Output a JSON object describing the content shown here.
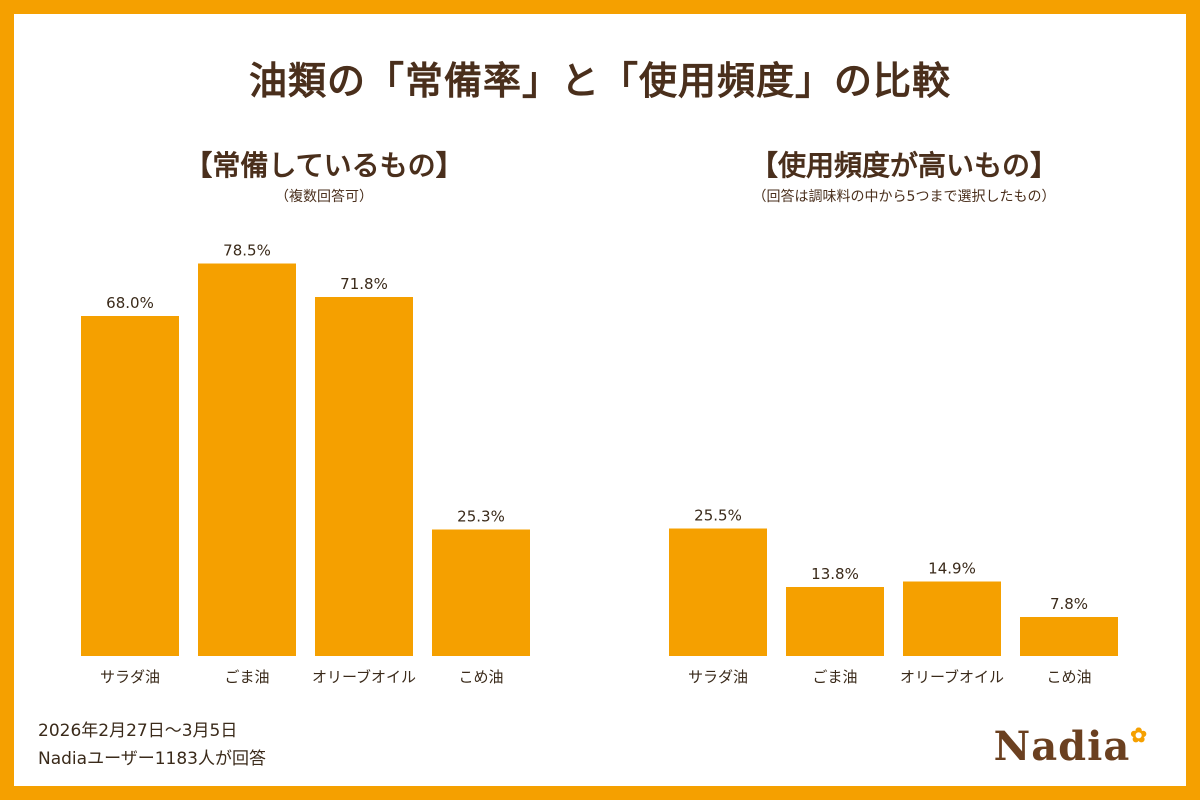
{
  "title": "油類の「常備率」と「使用頻度」の比較",
  "footer": {
    "date": "2026年2月27日〜3月5日",
    "respondents": "Nadiaユーザー1183人が回答"
  },
  "logo": {
    "text": "Nadia",
    "icon": "fork-knife-icon"
  },
  "colors": {
    "bar": "#f5a000",
    "frame": "#f5a000",
    "text": "#4a2f1c"
  },
  "chart_data": [
    {
      "type": "bar",
      "title": "【常備しているもの】",
      "subtitle": "（複数回答可）",
      "categories": [
        "サラダ油",
        "ごま油",
        "オリーブオイル",
        "こめ油"
      ],
      "values": [
        68.0,
        78.5,
        71.8,
        25.3
      ],
      "value_labels": [
        "68.0%",
        "78.5%",
        "71.8%",
        "25.3%"
      ],
      "unit": "%",
      "ylim": [
        0,
        100
      ]
    },
    {
      "type": "bar",
      "title": "【使用頻度が高いもの】",
      "subtitle": "（回答は調味料の中から5つまで選択したもの）",
      "categories": [
        "サラダ油",
        "ごま油",
        "オリーブオイル",
        "こめ油"
      ],
      "values": [
        25.5,
        13.8,
        14.9,
        7.8
      ],
      "value_labels": [
        "25.5%",
        "13.8%",
        "14.9%",
        "7.8%"
      ],
      "unit": "%",
      "ylim": [
        0,
        32
      ]
    }
  ]
}
